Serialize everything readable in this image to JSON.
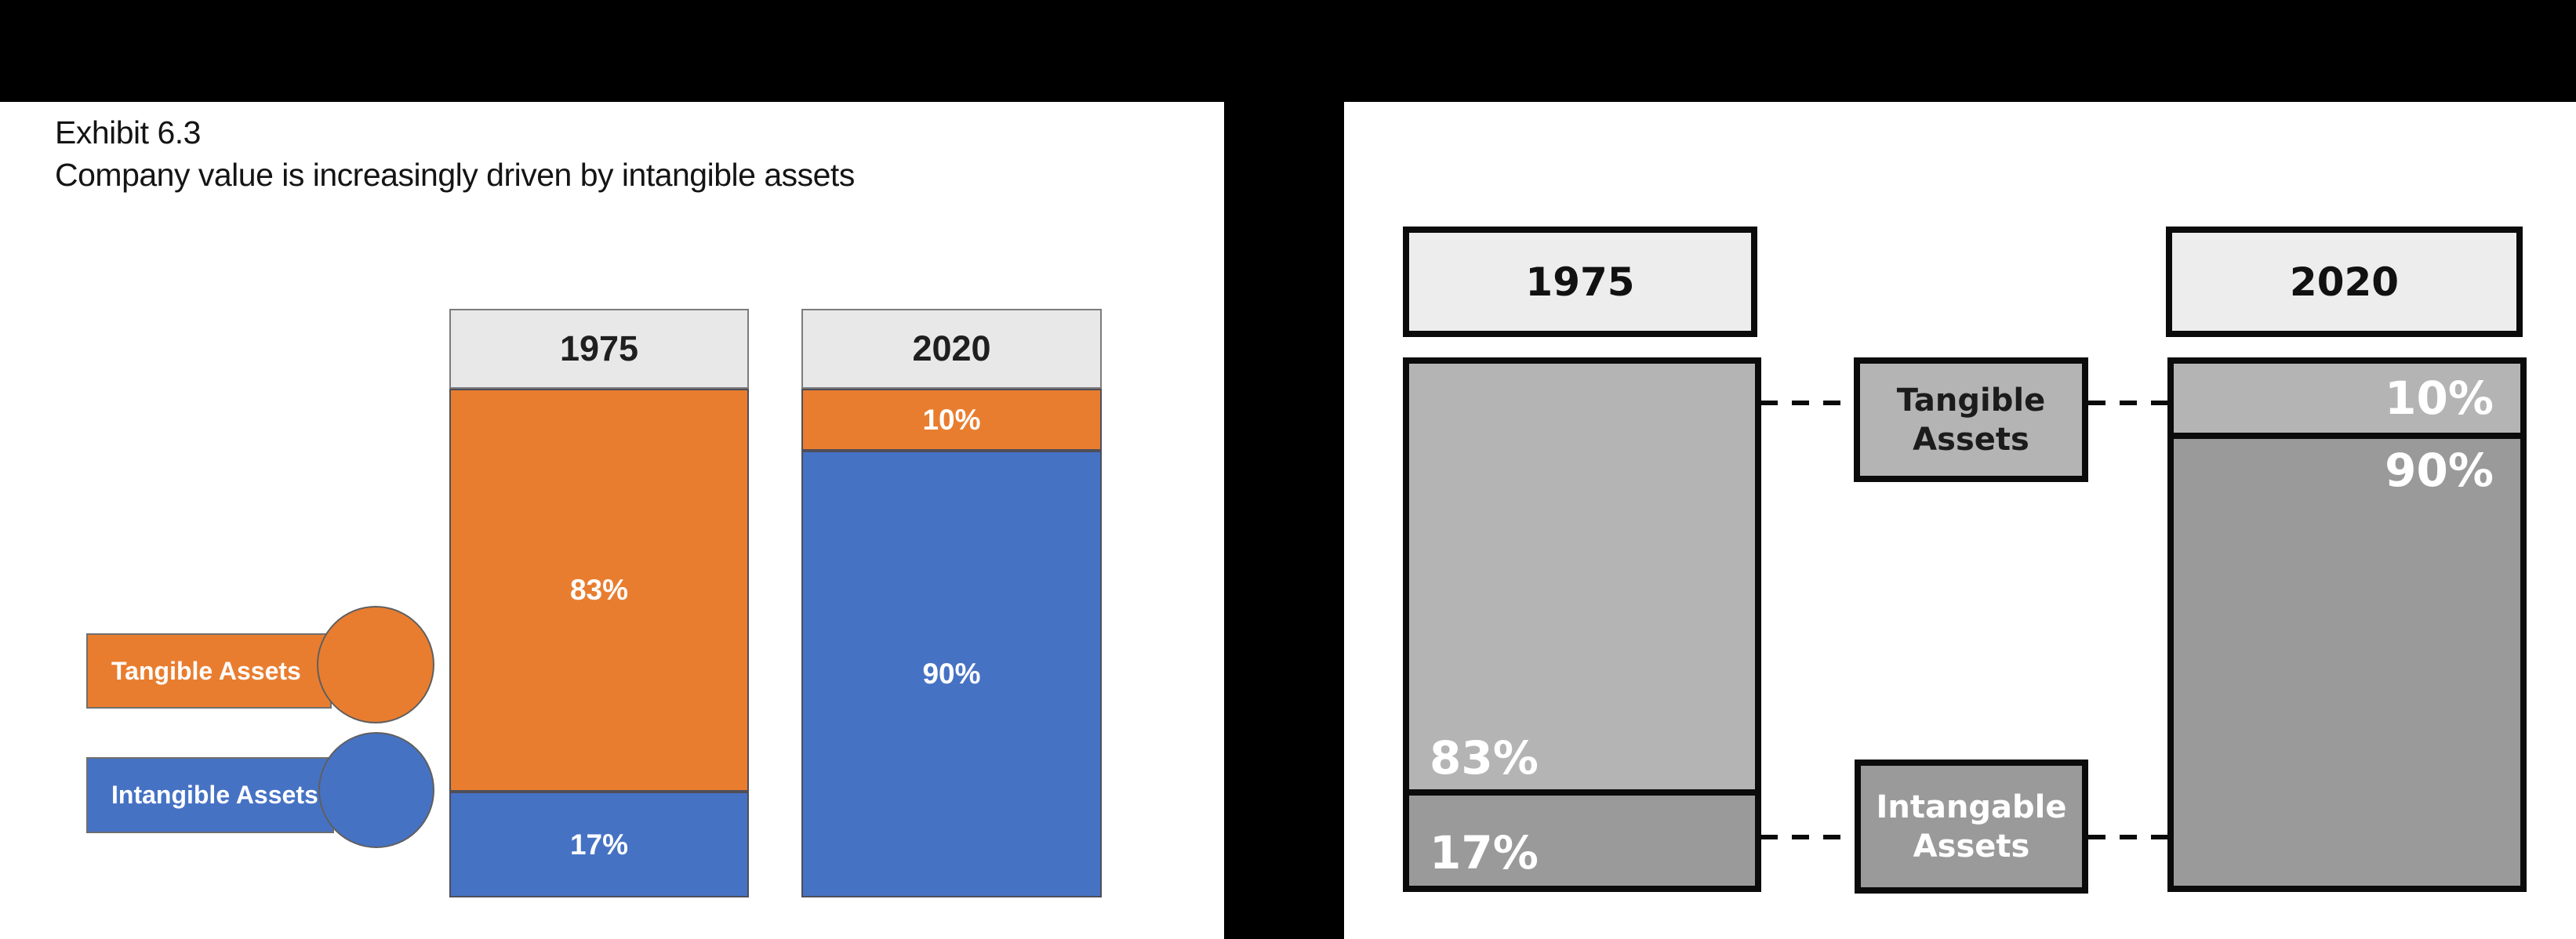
{
  "exhibit": {
    "title_line1": "Exhibit 6.3",
    "title_line2": "Company value is increasingly driven by intangible assets"
  },
  "left_chart": {
    "legend": [
      {
        "label": "Tangible Assets",
        "color": "#E97D2F"
      },
      {
        "label": "Intangible Assets",
        "color": "#4672C4"
      }
    ],
    "columns": [
      {
        "year": "1975",
        "segments": [
          {
            "name": "Tangible Assets",
            "label": "83%"
          },
          {
            "name": "Intangible Assets",
            "label": "17%"
          }
        ]
      },
      {
        "year": "2020",
        "segments": [
          {
            "name": "Tangible Assets",
            "label": "10%"
          },
          {
            "name": "Intangible Assets",
            "label": "90%"
          }
        ]
      }
    ]
  },
  "right_chart": {
    "connectors": [
      {
        "label": "Tangible Assets"
      },
      {
        "label": "Intangable Assets"
      }
    ],
    "columns": [
      {
        "year": "1975",
        "segments": [
          {
            "label": "83%"
          },
          {
            "label": "17%"
          }
        ]
      },
      {
        "year": "2020",
        "segments": [
          {
            "label": "10%"
          },
          {
            "label": "90%"
          }
        ]
      }
    ]
  },
  "colors": {
    "tangible_orange": "#E97D2F",
    "intangible_blue": "#4672C4",
    "gray_light": "#B4B4B4",
    "gray_dark": "#9A9A9A",
    "header_fill_left": "#E8E8E8",
    "header_fill_right": "#EDEDED",
    "frame_black": "#000000"
  },
  "chart_data": [
    {
      "type": "bar",
      "stacked": true,
      "subtitle": "Exhibit 6.3",
      "title": "Company value is increasingly driven by intangible assets",
      "categories": [
        "1975",
        "2020"
      ],
      "series": [
        {
          "name": "Tangible Assets",
          "values": [
            83,
            10
          ],
          "color": "#E97D2F"
        },
        {
          "name": "Intangible Assets",
          "values": [
            17,
            90
          ],
          "color": "#4672C4"
        }
      ],
      "value_unit": "percent",
      "data_labels": [
        [
          "83%",
          "17%"
        ],
        [
          "10%",
          "90%"
        ]
      ],
      "legend_position": "left",
      "axis": "none",
      "grid": false
    },
    {
      "type": "bar",
      "stacked": true,
      "title": "",
      "categories": [
        "1975",
        "2020"
      ],
      "series": [
        {
          "name": "Tangible Assets",
          "values": [
            83,
            10
          ],
          "color": "#B4B4B4"
        },
        {
          "name": "Intangable Assets",
          "values": [
            17,
            90
          ],
          "color": "#9A9A9A"
        }
      ],
      "value_unit": "percent",
      "data_labels": [
        [
          "83%",
          "17%"
        ],
        [
          "10%",
          "90%"
        ]
      ],
      "legend_position": "center-connector-boxes",
      "axis": "none",
      "grid": false
    }
  ]
}
